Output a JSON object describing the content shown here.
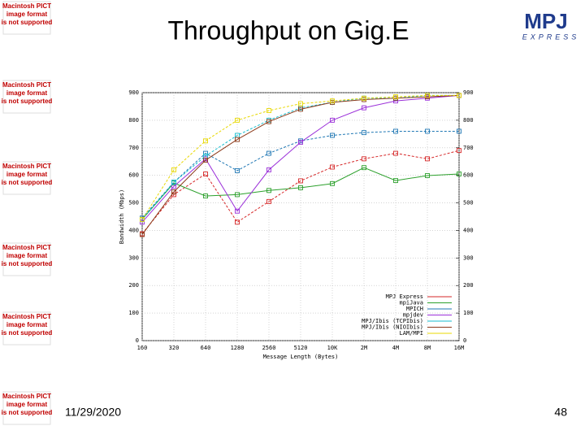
{
  "slide": {
    "title": "Throughput on Gig.E",
    "date": "11/29/2020",
    "page": "48",
    "placeholder": [
      "Macintosh PICT",
      "image format",
      "is not supported"
    ],
    "logo": [
      "MPJ",
      "EXPRESS"
    ]
  },
  "chart_data": {
    "type": "line",
    "x_label": "Message Length (Bytes)",
    "y_label": "Bandwidth (Mbps)",
    "categories": [
      "160",
      "320",
      "640",
      "1280",
      "2560",
      "5120",
      "10K",
      "2M",
      "4M",
      "8M",
      "16M"
    ],
    "ylim": [
      0,
      900
    ],
    "yticks": [
      0,
      100,
      200,
      300,
      400,
      500,
      600,
      700,
      800,
      900
    ],
    "y2lim": [
      0,
      900
    ],
    "y2ticks": [
      0,
      100,
      200,
      300,
      400,
      500,
      600,
      700,
      800,
      900
    ],
    "grid": true,
    "legend": "lower right",
    "series": [
      {
        "name": "MPJ Express",
        "color": "#d62728",
        "values": [
          388,
          530,
          605,
          430,
          505,
          580,
          630,
          660,
          680,
          660,
          690
        ]
      },
      {
        "name": "mpiJava",
        "color": "#2ca02c",
        "values": [
          440,
          572,
          525,
          530,
          545,
          555,
          570,
          628,
          581,
          599,
          605
        ]
      },
      {
        "name": "MPICH",
        "color": "#1f77b4",
        "values": [
          445,
          575,
          680,
          617,
          680,
          725,
          745,
          755,
          760,
          760,
          760
        ]
      },
      {
        "name": "mpjdev",
        "color": "#9b30d9",
        "values": [
          430,
          560,
          660,
          470,
          620,
          720,
          800,
          845,
          870,
          880,
          890
        ]
      },
      {
        "name": "MPJ/Ibis (TCPIbis)",
        "color": "#17becf",
        "values": [
          440,
          575,
          670,
          745,
          800,
          845,
          865,
          880,
          880,
          890,
          890
        ]
      },
      {
        "name": "MPJ/Ibis (NIOIbis)",
        "color": "#8c3a1a",
        "values": [
          385,
          540,
          655,
          730,
          795,
          840,
          865,
          875,
          880,
          885,
          890
        ]
      },
      {
        "name": "LAM/MPI",
        "color": "#e8d800",
        "values": [
          440,
          620,
          725,
          800,
          835,
          860,
          870,
          880,
          885,
          890,
          890
        ]
      }
    ]
  }
}
